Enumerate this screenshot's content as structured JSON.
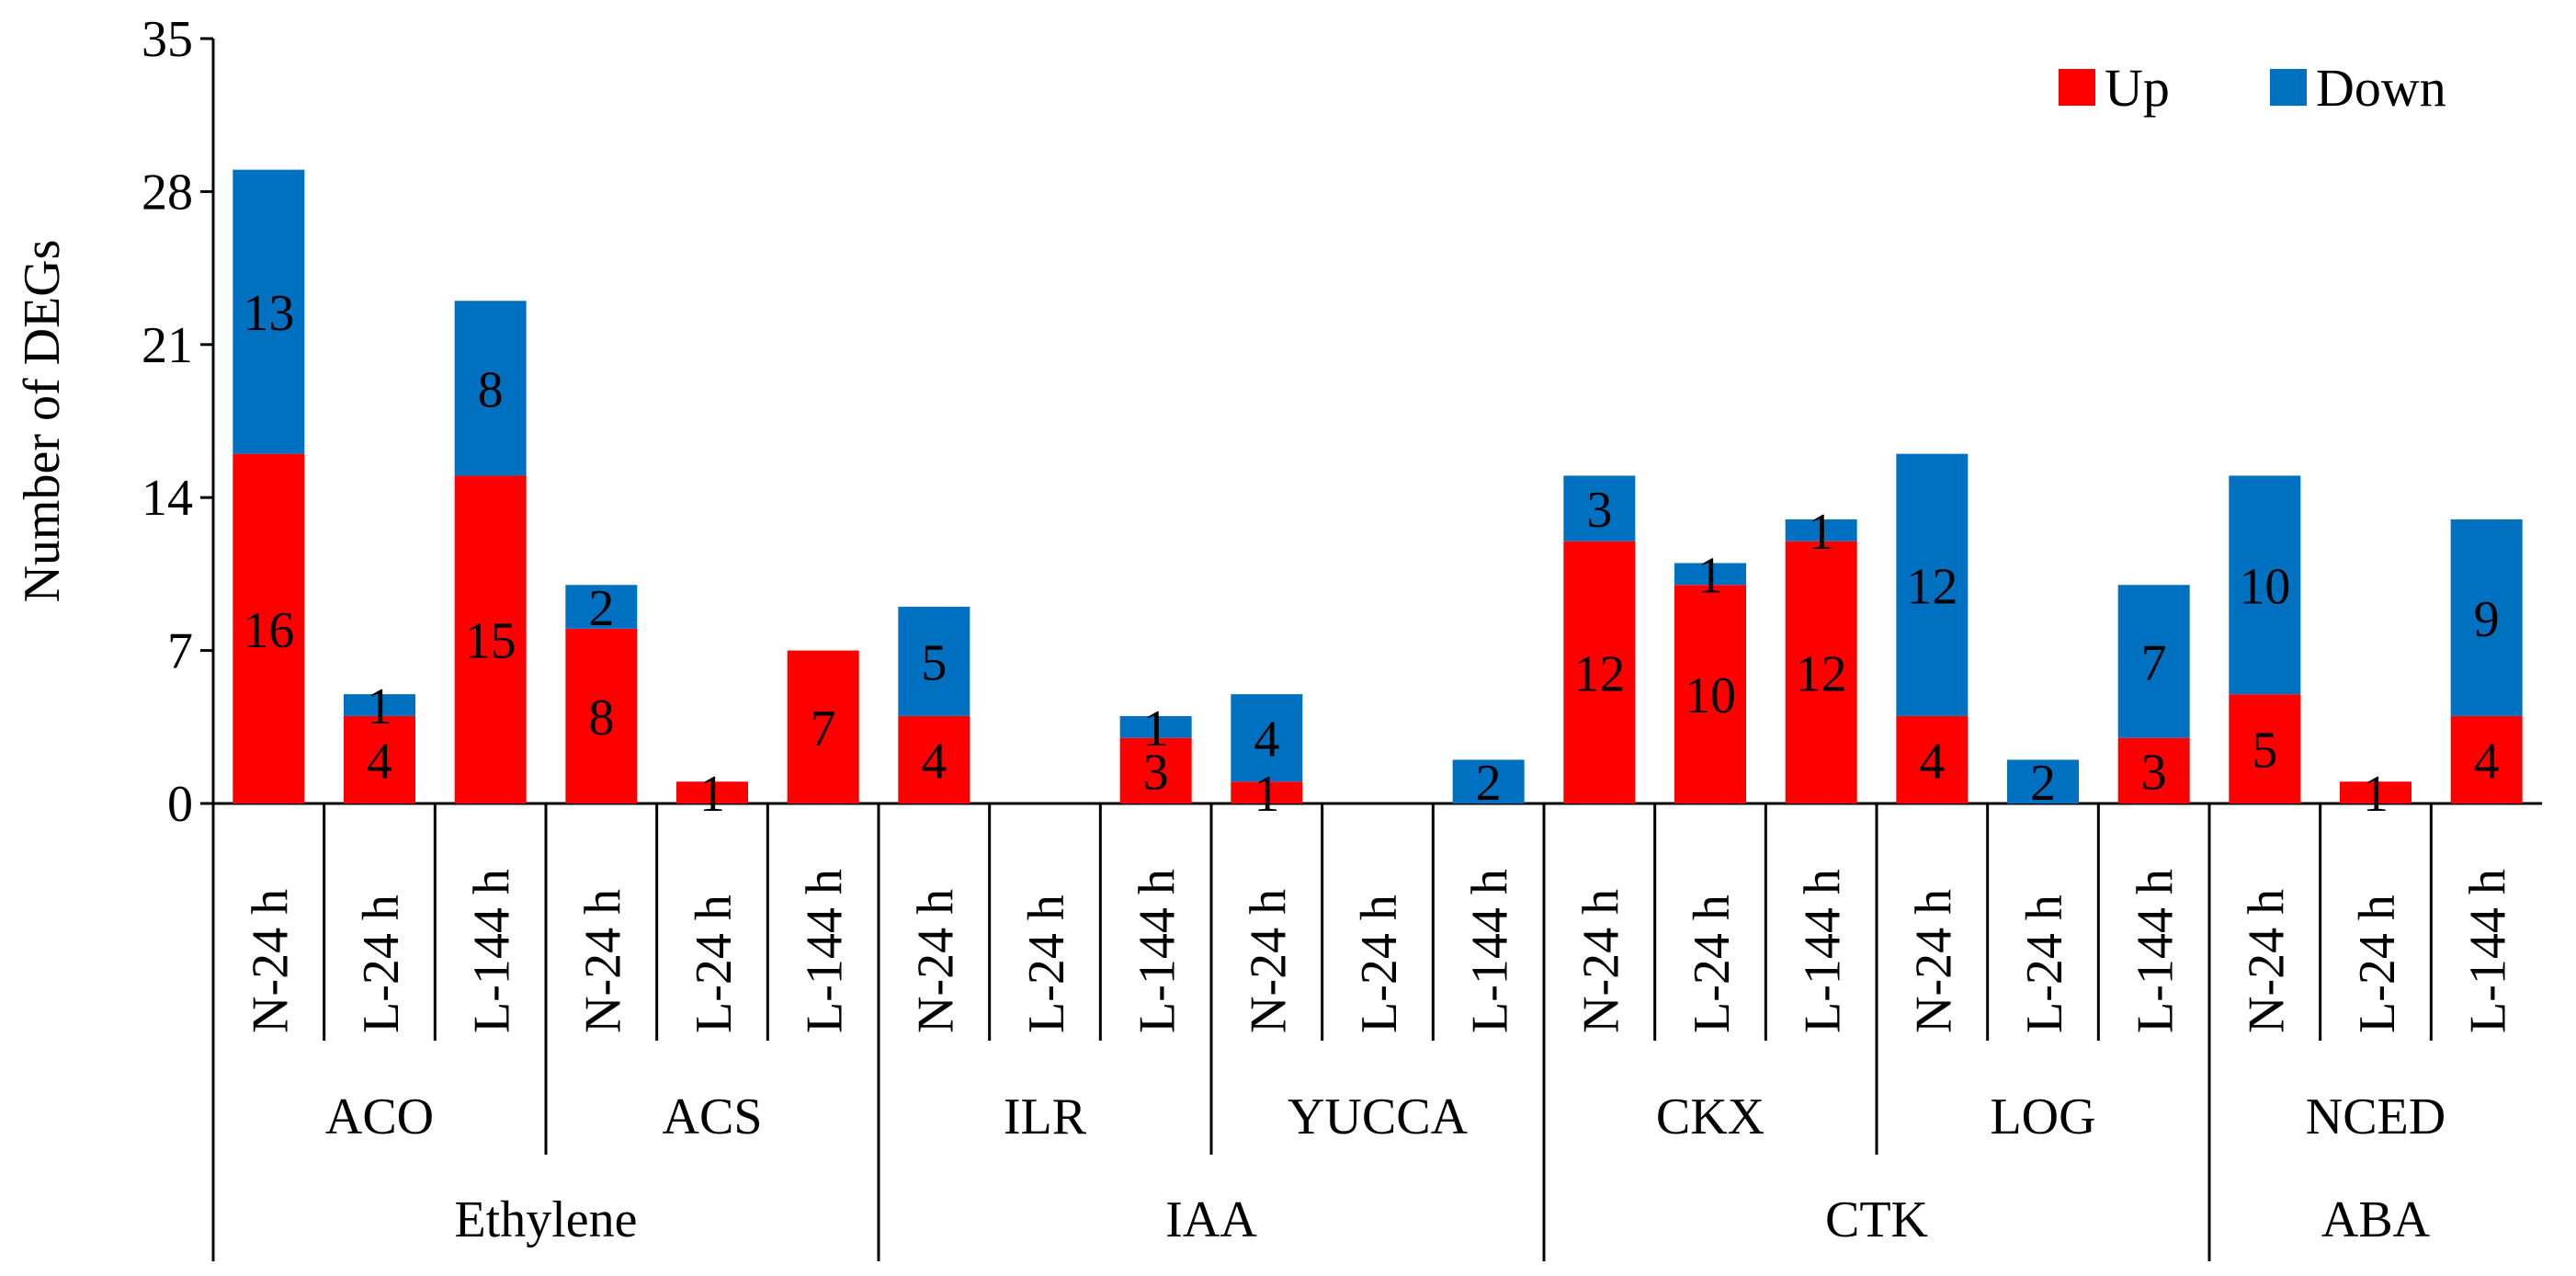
{
  "chart_data": {
    "type": "bar",
    "stacked": true,
    "ylabel": "Number of DEGs",
    "ylim": [
      0,
      35
    ],
    "yticks": [
      0,
      7,
      14,
      21,
      28,
      35
    ],
    "legend_position": "top-right",
    "categories": [
      "N-24 h",
      "L-24 h",
      "L-144 h",
      "N-24 h",
      "L-24 h",
      "L-144 h",
      "N-24 h",
      "L-24 h",
      "L-144 h",
      "N-24 h",
      "L-24 h",
      "L-144 h",
      "N-24 h",
      "L-24 h",
      "L-144 h",
      "N-24 h",
      "L-24 h",
      "L-144 h",
      "N-24 h",
      "L-24 h",
      "L-144 h"
    ],
    "series": [
      {
        "name": "Up",
        "color": "#ff0000",
        "values": [
          16,
          4,
          15,
          8,
          1,
          7,
          4,
          0,
          3,
          1,
          0,
          0,
          12,
          10,
          12,
          4,
          0,
          3,
          5,
          1,
          4
        ]
      },
      {
        "name": "Down",
        "color": "#0070c0",
        "values": [
          13,
          1,
          8,
          2,
          0,
          0,
          5,
          0,
          1,
          4,
          0,
          2,
          3,
          1,
          1,
          12,
          2,
          7,
          10,
          0,
          9
        ]
      }
    ],
    "gene_groups": [
      {
        "label": "ACO",
        "count": 3
      },
      {
        "label": "ACS",
        "count": 3
      },
      {
        "label": "ILR",
        "count": 3
      },
      {
        "label": "YUCCA",
        "count": 3
      },
      {
        "label": "CKX",
        "count": 3
      },
      {
        "label": "LOG",
        "count": 3
      },
      {
        "label": "NCED",
        "count": 3
      }
    ],
    "hormone_groups": [
      {
        "label": "Ethylene",
        "count": 6
      },
      {
        "label": "IAA",
        "count": 6
      },
      {
        "label": "CTK",
        "count": 6
      },
      {
        "label": "ABA",
        "count": 3
      }
    ]
  }
}
